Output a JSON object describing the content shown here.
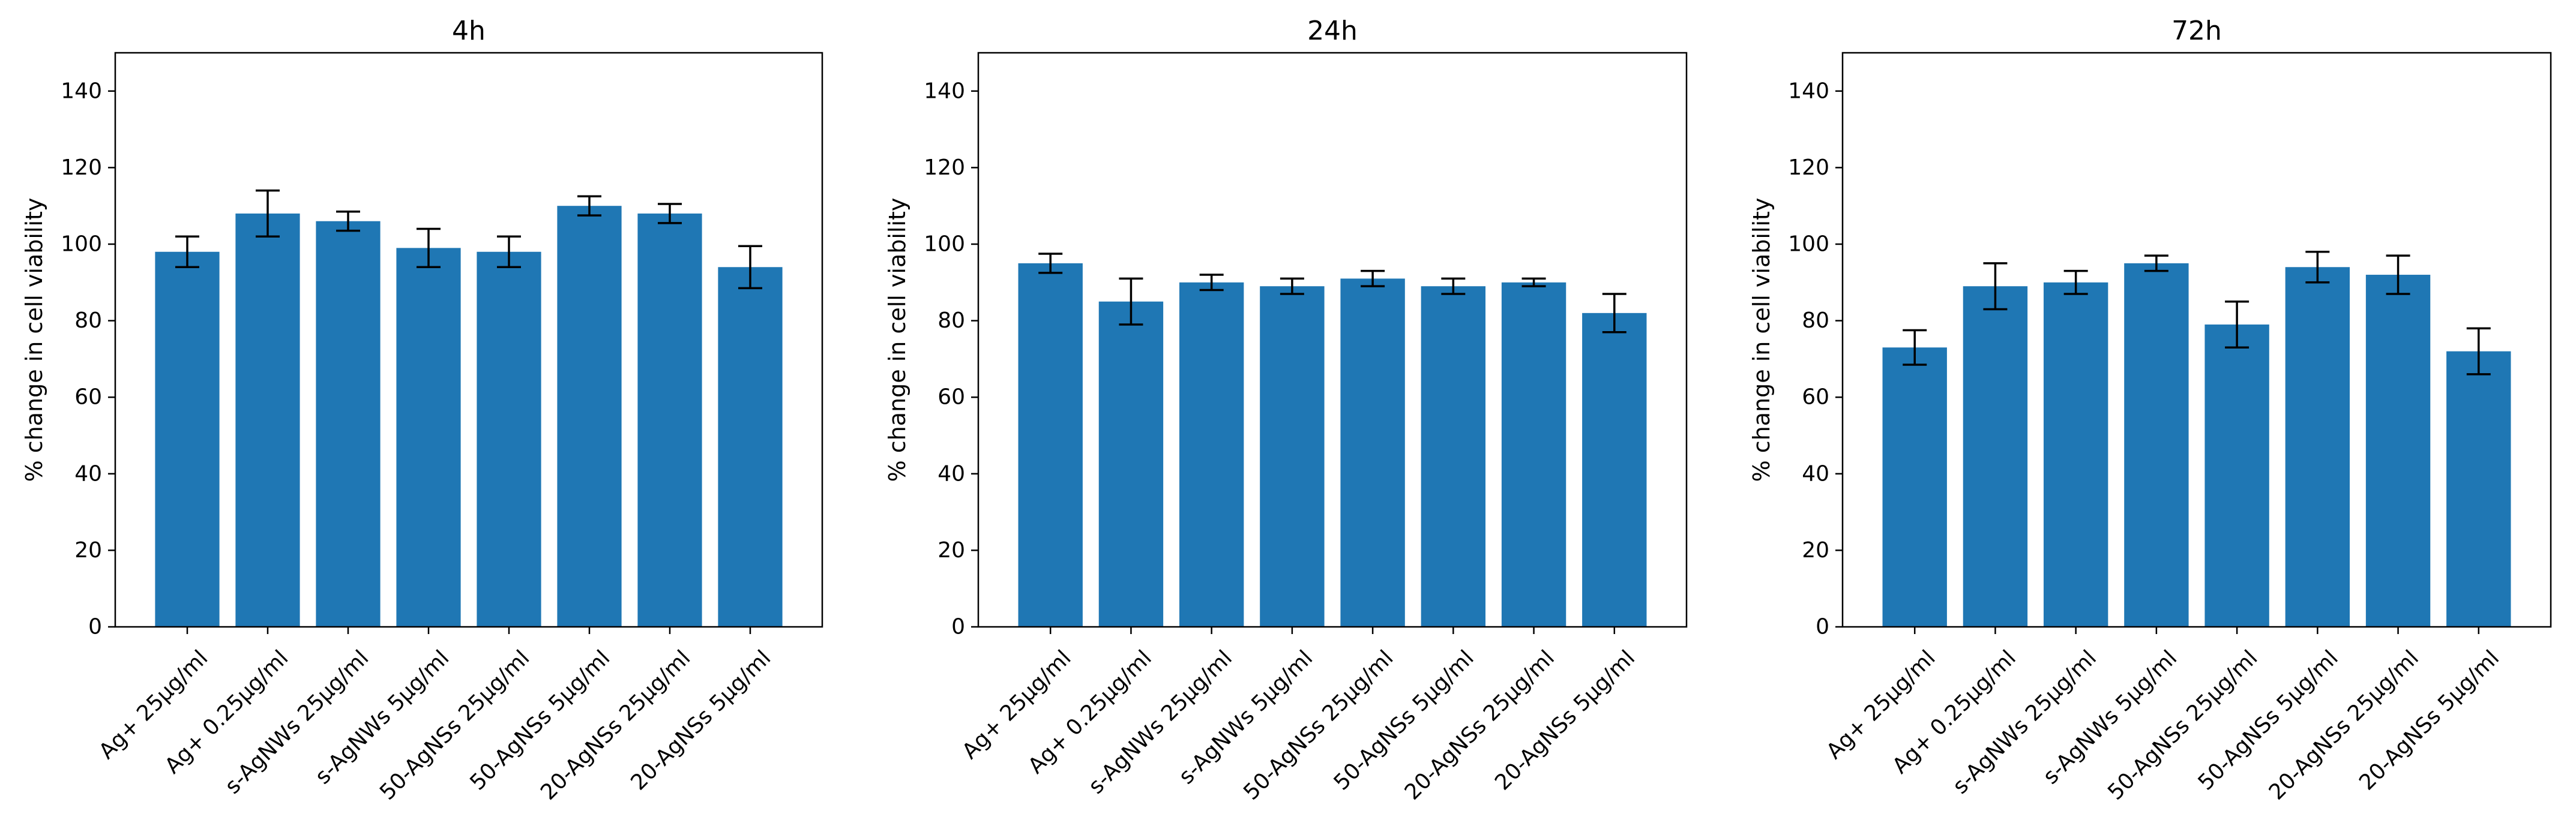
{
  "chart_data": [
    {
      "type": "bar",
      "title": "4h",
      "xlabel": "",
      "ylabel": "% change in cell viability",
      "ylim": [
        0,
        150
      ],
      "yticks": [
        "0",
        "20",
        "40",
        "60",
        "80",
        "100",
        "120",
        "140"
      ],
      "categories": [
        "Ag+ 25µg/ml",
        "Ag+ 0.25µg/ml",
        "s-AgNWs 25µg/ml",
        "s-AgNWs 5µg/ml",
        "50-AgNSs 25µg/ml",
        "50-AgNSs 5µg/ml",
        "20-AgNSs 25µg/ml",
        "20-AgNSs 5µg/ml"
      ],
      "values": [
        98,
        108,
        106,
        99,
        98,
        110,
        108,
        94
      ],
      "errors": [
        4,
        6,
        2.5,
        5,
        4,
        2.5,
        2.5,
        5.5
      ],
      "color": "#1f77b4",
      "grid": false
    },
    {
      "type": "bar",
      "title": "24h",
      "xlabel": "",
      "ylabel": "% change in cell viability",
      "ylim": [
        0,
        150
      ],
      "yticks": [
        "0",
        "20",
        "40",
        "60",
        "80",
        "100",
        "120",
        "140"
      ],
      "categories": [
        "Ag+ 25µg/ml",
        "Ag+ 0.25µg/ml",
        "s-AgNWs 25µg/ml",
        "s-AgNWs 5µg/ml",
        "50-AgNSs 25µg/ml",
        "50-AgNSs 5µg/ml",
        "20-AgNSs 25µg/ml",
        "20-AgNSs 5µg/ml"
      ],
      "values": [
        95,
        85,
        90,
        89,
        91,
        89,
        90,
        82
      ],
      "errors": [
        2.5,
        6,
        2,
        2,
        2,
        2,
        1,
        5
      ],
      "color": "#1f77b4",
      "grid": false
    },
    {
      "type": "bar",
      "title": "72h",
      "xlabel": "",
      "ylabel": "% change in cell viability",
      "ylim": [
        0,
        150
      ],
      "yticks": [
        "0",
        "20",
        "40",
        "60",
        "80",
        "100",
        "120",
        "140"
      ],
      "categories": [
        "Ag+ 25µg/ml",
        "Ag+ 0.25µg/ml",
        "s-AgNWs 25µg/ml",
        "s-AgNWs 5µg/ml",
        "50-AgNSs 25µg/ml",
        "50-AgNSs 5µg/ml",
        "20-AgNSs 25µg/ml",
        "20-AgNSs 5µg/ml"
      ],
      "values": [
        73,
        89,
        90,
        95,
        79,
        94,
        92,
        72
      ],
      "errors": [
        4.5,
        6,
        3,
        2,
        6,
        4,
        5,
        6
      ],
      "color": "#1f77b4",
      "grid": false
    }
  ]
}
